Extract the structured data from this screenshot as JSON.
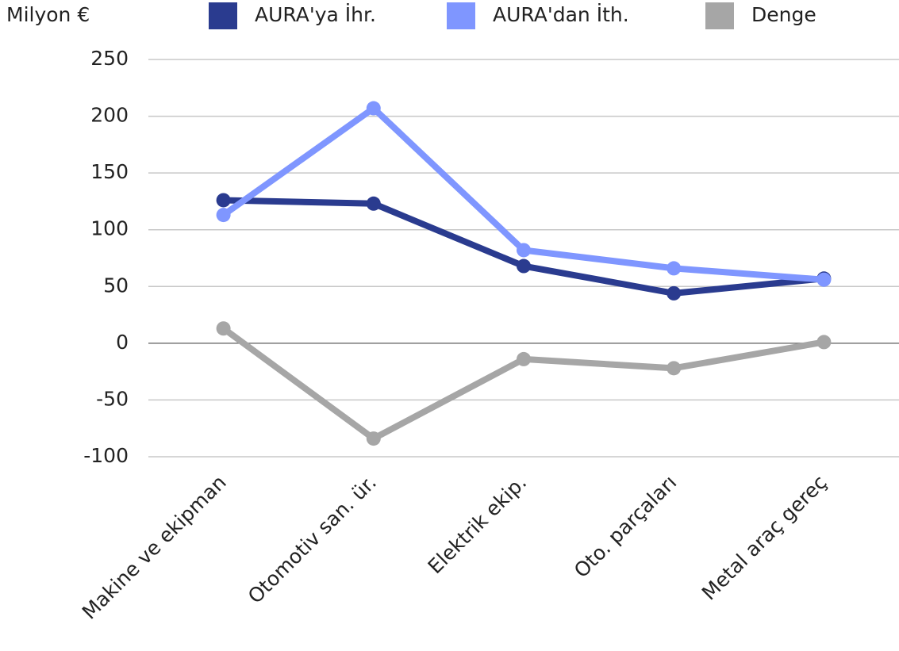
{
  "chart_data": {
    "type": "line",
    "y_label": "Milyon €",
    "categories": [
      "Makine ve ekipman",
      "Otomotiv san. ür.",
      "Elektrik ekip.",
      "Oto. parçaları",
      "Metal araç gereç"
    ],
    "series": [
      {
        "name": "AURA'ya İhr.",
        "color": "#2a3b8f",
        "values": [
          126,
          123,
          68,
          44,
          57
        ]
      },
      {
        "name": "AURA'dan İth.",
        "color": "#7f96ff",
        "values": [
          113,
          207,
          82,
          66,
          56
        ]
      },
      {
        "name": "Denge",
        "color": "#a6a6a6",
        "values": [
          13,
          -84,
          -14,
          -22,
          1
        ]
      }
    ],
    "ylim": [
      -100,
      250
    ],
    "yticks": [
      -100,
      -50,
      0,
      50,
      100,
      150,
      200,
      250
    ],
    "grid": true,
    "legend": "top"
  }
}
